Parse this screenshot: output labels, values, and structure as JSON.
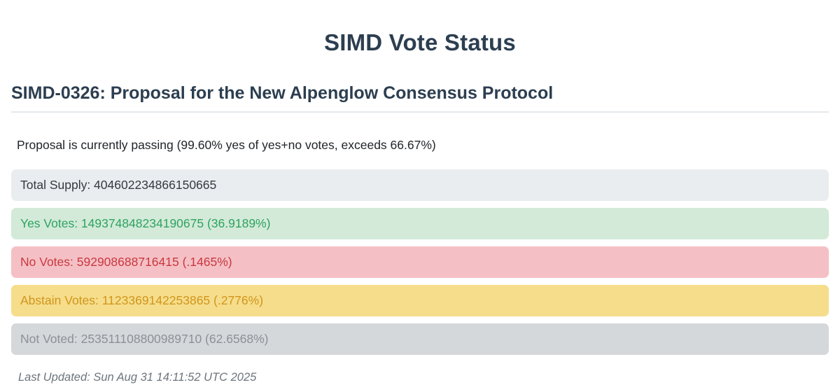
{
  "header": {
    "title": "SIMD Vote Status"
  },
  "proposal": {
    "heading": "SIMD-0326: Proposal for the New Alpenglow Consensus Protocol",
    "status_text": "Proposal is currently passing (99.60% yes of yes+no votes, exceeds 66.67%)",
    "passing_threshold": "66.67%",
    "yes_of_yes_no": "99.60%"
  },
  "results": {
    "total_supply": {
      "text": "Total Supply: 404602234866150665",
      "value": "404602234866150665",
      "bg_color": "#e9edef",
      "text_color": "#343a40"
    },
    "yes": {
      "text": "Yes Votes: 149374848234190675 (36.9189%)",
      "value": "149374848234190675",
      "percent": "36.9189%",
      "bg_color": "#d3ead9",
      "text_color": "#2ea35f"
    },
    "no": {
      "text": "No Votes: 592908688716415 (.1465%)",
      "value": "592908688716415",
      "percent": ".1465%",
      "bg_color": "#f5c0c5",
      "text_color": "#c9383f"
    },
    "abstain": {
      "text": "Abstain Votes: 1123369142253865 (.2776%)",
      "value": "1123369142253865",
      "percent": ".2776%",
      "bg_color": "#f6dd8b",
      "text_color": "#d0961c"
    },
    "not_voted": {
      "text": "Not Voted: 253511108800989710 (62.6568%)",
      "value": "253511108800989710",
      "percent": "62.6568%",
      "bg_color": "#d5d8db",
      "text_color": "#8b9197"
    }
  },
  "footer": {
    "last_updated": "Last Updated: Sun Aug 31 14:11:52 UTC 2025"
  },
  "theme": {
    "heading_color": "#2c3e50",
    "body_text_color": "#212529",
    "muted_color": "#6c757d",
    "divider_color": "#e6e9ec",
    "background": "#ffffff"
  }
}
